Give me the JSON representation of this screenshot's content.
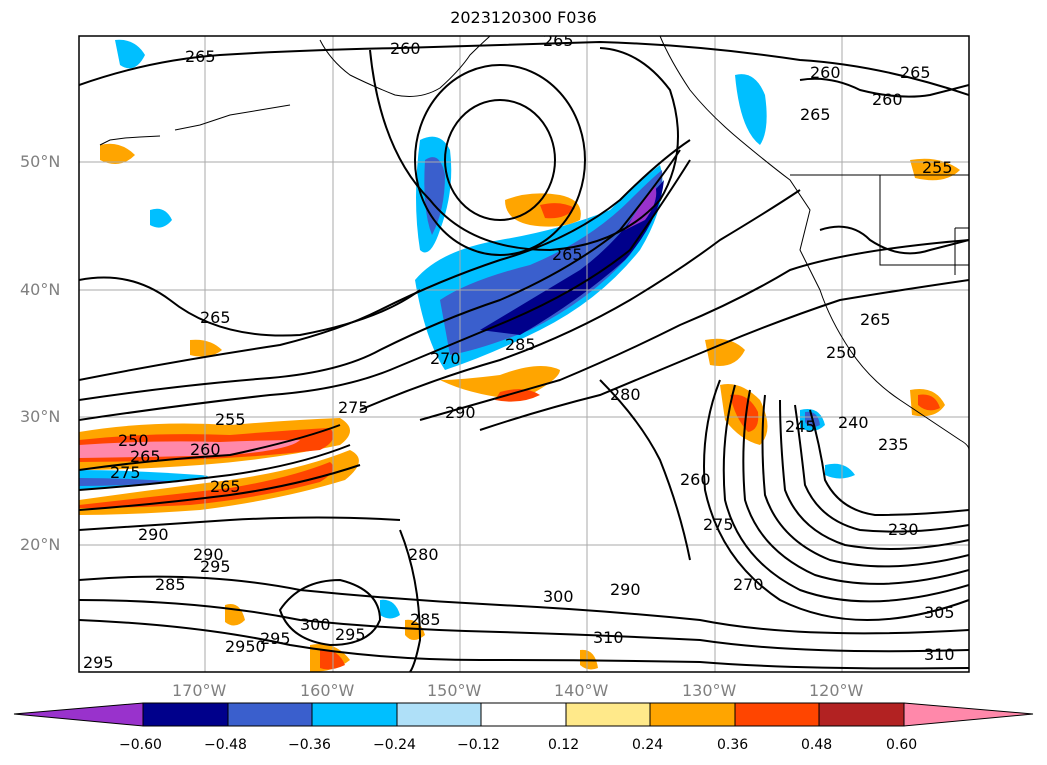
{
  "title": "2023120300 F036",
  "lat_labels": [
    "50°N",
    "40°N",
    "30°N",
    "20°N"
  ],
  "lon_labels": [
    "170°W",
    "160°W",
    "150°W",
    "140°W",
    "130°W",
    "120°W"
  ],
  "colorbar": {
    "ticks": [
      "−0.60",
      "−0.48",
      "−0.36",
      "−0.24",
      "−0.12",
      "0.12",
      "0.24",
      "0.36",
      "0.48",
      "0.60"
    ],
    "colors": [
      "#9932cc",
      "#00008b",
      "#3a5fcd",
      "#00bfff",
      "#afe0f8",
      "#ffffff",
      "#ffe98a",
      "#ffa500",
      "#ff4500",
      "#b22222",
      "#ff88aa"
    ]
  },
  "contour_labels": [
    "265",
    "260",
    "265",
    "260",
    "265",
    "260",
    "255",
    "265",
    "265",
    "270",
    "285",
    "290",
    "275",
    "250",
    "265",
    "280",
    "255",
    "275",
    "260",
    "265",
    "290",
    "290",
    "295",
    "285",
    "300",
    "295",
    "285",
    "280",
    "2950",
    "295",
    "300",
    "310",
    "290",
    "270",
    "275",
    "260",
    "245",
    "250",
    "240",
    "235",
    "265",
    "265",
    "230",
    "305",
    "310",
    "295"
  ]
}
